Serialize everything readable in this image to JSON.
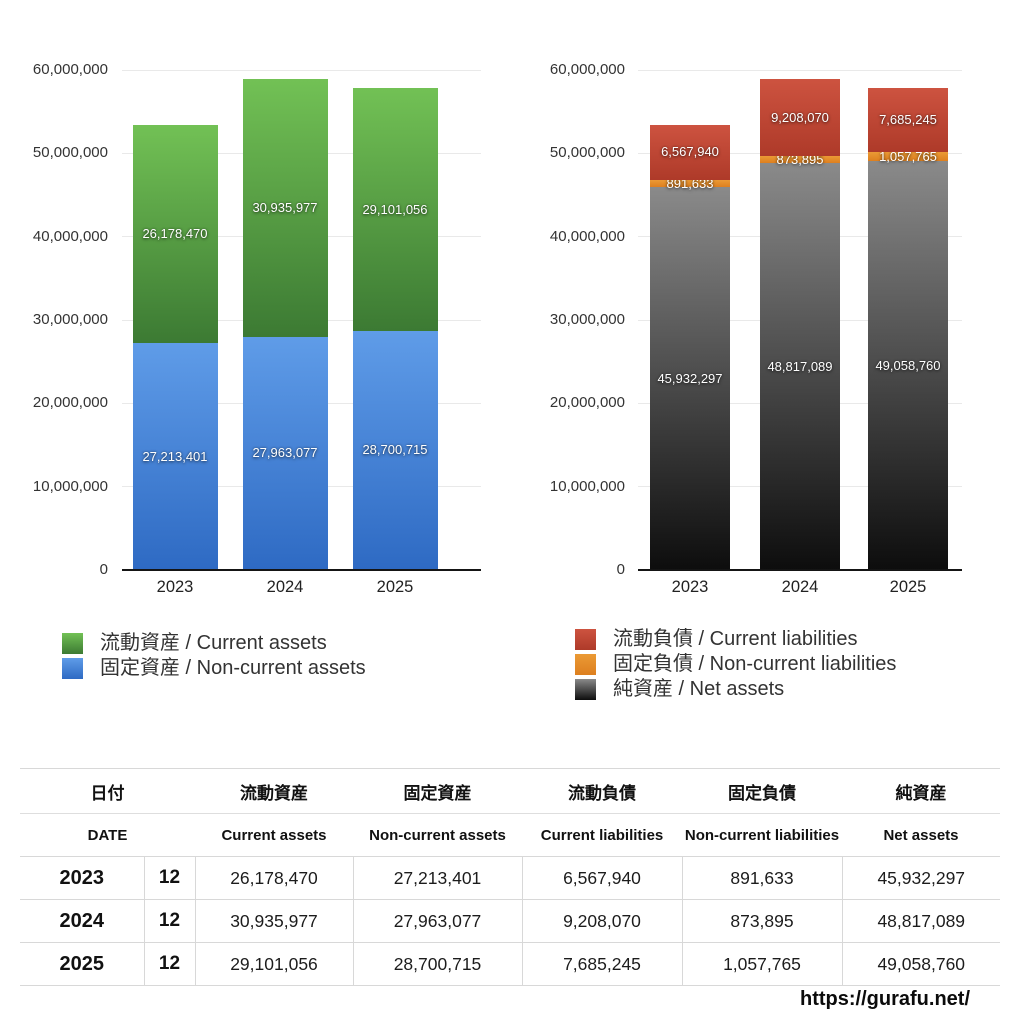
{
  "page": {
    "background": "#ffffff"
  },
  "chart_data": [
    {
      "type": "bar",
      "stacked": true,
      "title": "",
      "xlabel": "",
      "ylabel": "",
      "categories": [
        "2023",
        "2024",
        "2025"
      ],
      "ylim": [
        0,
        60000000
      ],
      "ytick_interval": 10000000,
      "ytick_labels": [
        "0",
        "10,000,000",
        "20,000,000",
        "30,000,000",
        "40,000,000",
        "50,000,000",
        "60,000,000"
      ],
      "grid": true,
      "legend_position": "bottom-left",
      "series": [
        {
          "name": "流動資産 / Current assets",
          "values": [
            26178470,
            30935977,
            29101056
          ],
          "color_top": "#72c155",
          "color_bottom": "#3c7a33"
        },
        {
          "name": "固定資産 / Non-current assets",
          "values": [
            27213401,
            27963077,
            28700715
          ],
          "color_top": "#5f9ce8",
          "color_bottom": "#2e6ac3"
        }
      ]
    },
    {
      "type": "bar",
      "stacked": true,
      "title": "",
      "xlabel": "",
      "ylabel": "",
      "categories": [
        "2023",
        "2024",
        "2025"
      ],
      "ylim": [
        0,
        60000000
      ],
      "ytick_interval": 10000000,
      "ytick_labels": [
        "0",
        "10,000,000",
        "20,000,000",
        "30,000,000",
        "40,000,000",
        "50,000,000",
        "60,000,000"
      ],
      "grid": true,
      "legend_position": "bottom-left",
      "series": [
        {
          "name": "流動負債 / Current liabilities",
          "values": [
            6567940,
            9208070,
            7685245
          ],
          "color_top": "#cd5340",
          "color_bottom": "#ae3a29"
        },
        {
          "name": "固定負債 / Non-current liabilities",
          "values": [
            891633,
            873895,
            1057765
          ],
          "color_top": "#eb9a35",
          "color_bottom": "#dd7f1f"
        },
        {
          "name": "純資産 / Net assets",
          "values": [
            45932297,
            48817089,
            49058760
          ],
          "color_top": "#8a8a8a",
          "color_bottom": "#0d0d0d"
        }
      ]
    }
  ],
  "table": {
    "columns": [
      {
        "jp": "日付",
        "en": "DATE"
      },
      {
        "jp": "流動資産",
        "en": "Current assets"
      },
      {
        "jp": "固定資産",
        "en": "Non-current assets"
      },
      {
        "jp": "流動負債",
        "en": "Current liabilities"
      },
      {
        "jp": "固定負債",
        "en": "Non-current liabilities"
      },
      {
        "jp": "純資産",
        "en": "Net assets"
      }
    ],
    "rows": [
      {
        "year": "2023",
        "month": "12",
        "values": [
          "26,178,470",
          "27,213,401",
          "6,567,940",
          "891,633",
          "45,932,297"
        ]
      },
      {
        "year": "2024",
        "month": "12",
        "values": [
          "30,935,977",
          "27,963,077",
          "9,208,070",
          "873,895",
          "48,817,089"
        ]
      },
      {
        "year": "2025",
        "month": "12",
        "values": [
          "29,101,056",
          "28,700,715",
          "7,685,245",
          "1,057,765",
          "49,058,760"
        ]
      }
    ]
  },
  "footer": {
    "url": "https://gurafu.net/"
  }
}
